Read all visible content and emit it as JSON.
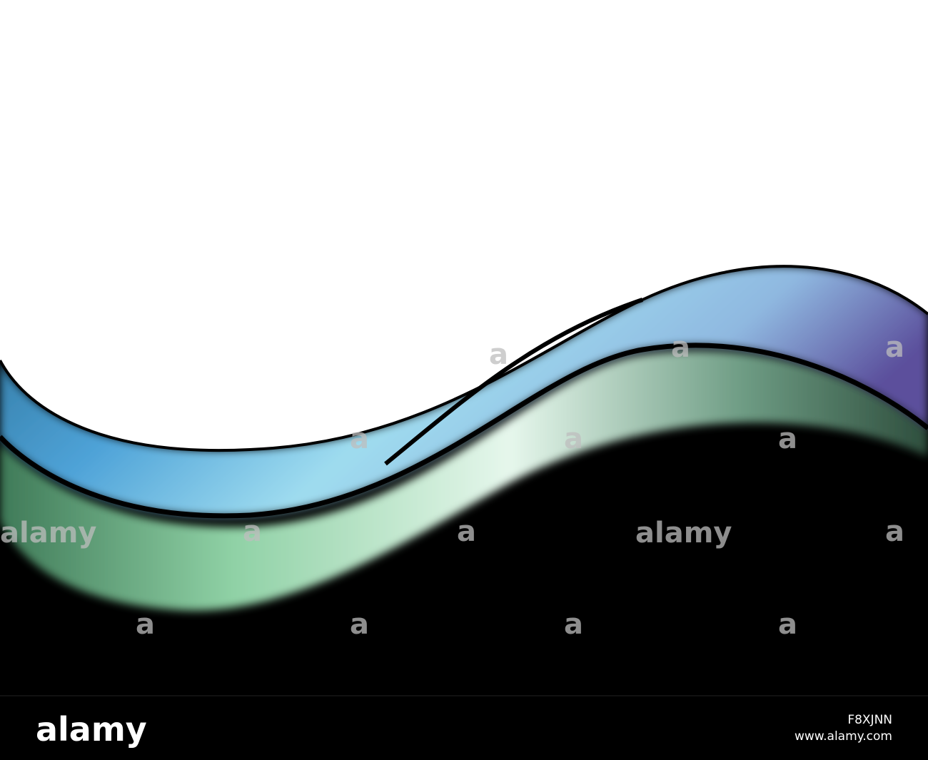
{
  "footer": {
    "logo": "alamy",
    "image_id": "F8XJNN",
    "website": "www.alamy.com"
  },
  "watermarks": [
    "alamy",
    "alamy",
    "a",
    "a",
    "a",
    "a",
    "a",
    "a",
    "a",
    "a",
    "a",
    "a",
    "a",
    "a",
    "a"
  ]
}
